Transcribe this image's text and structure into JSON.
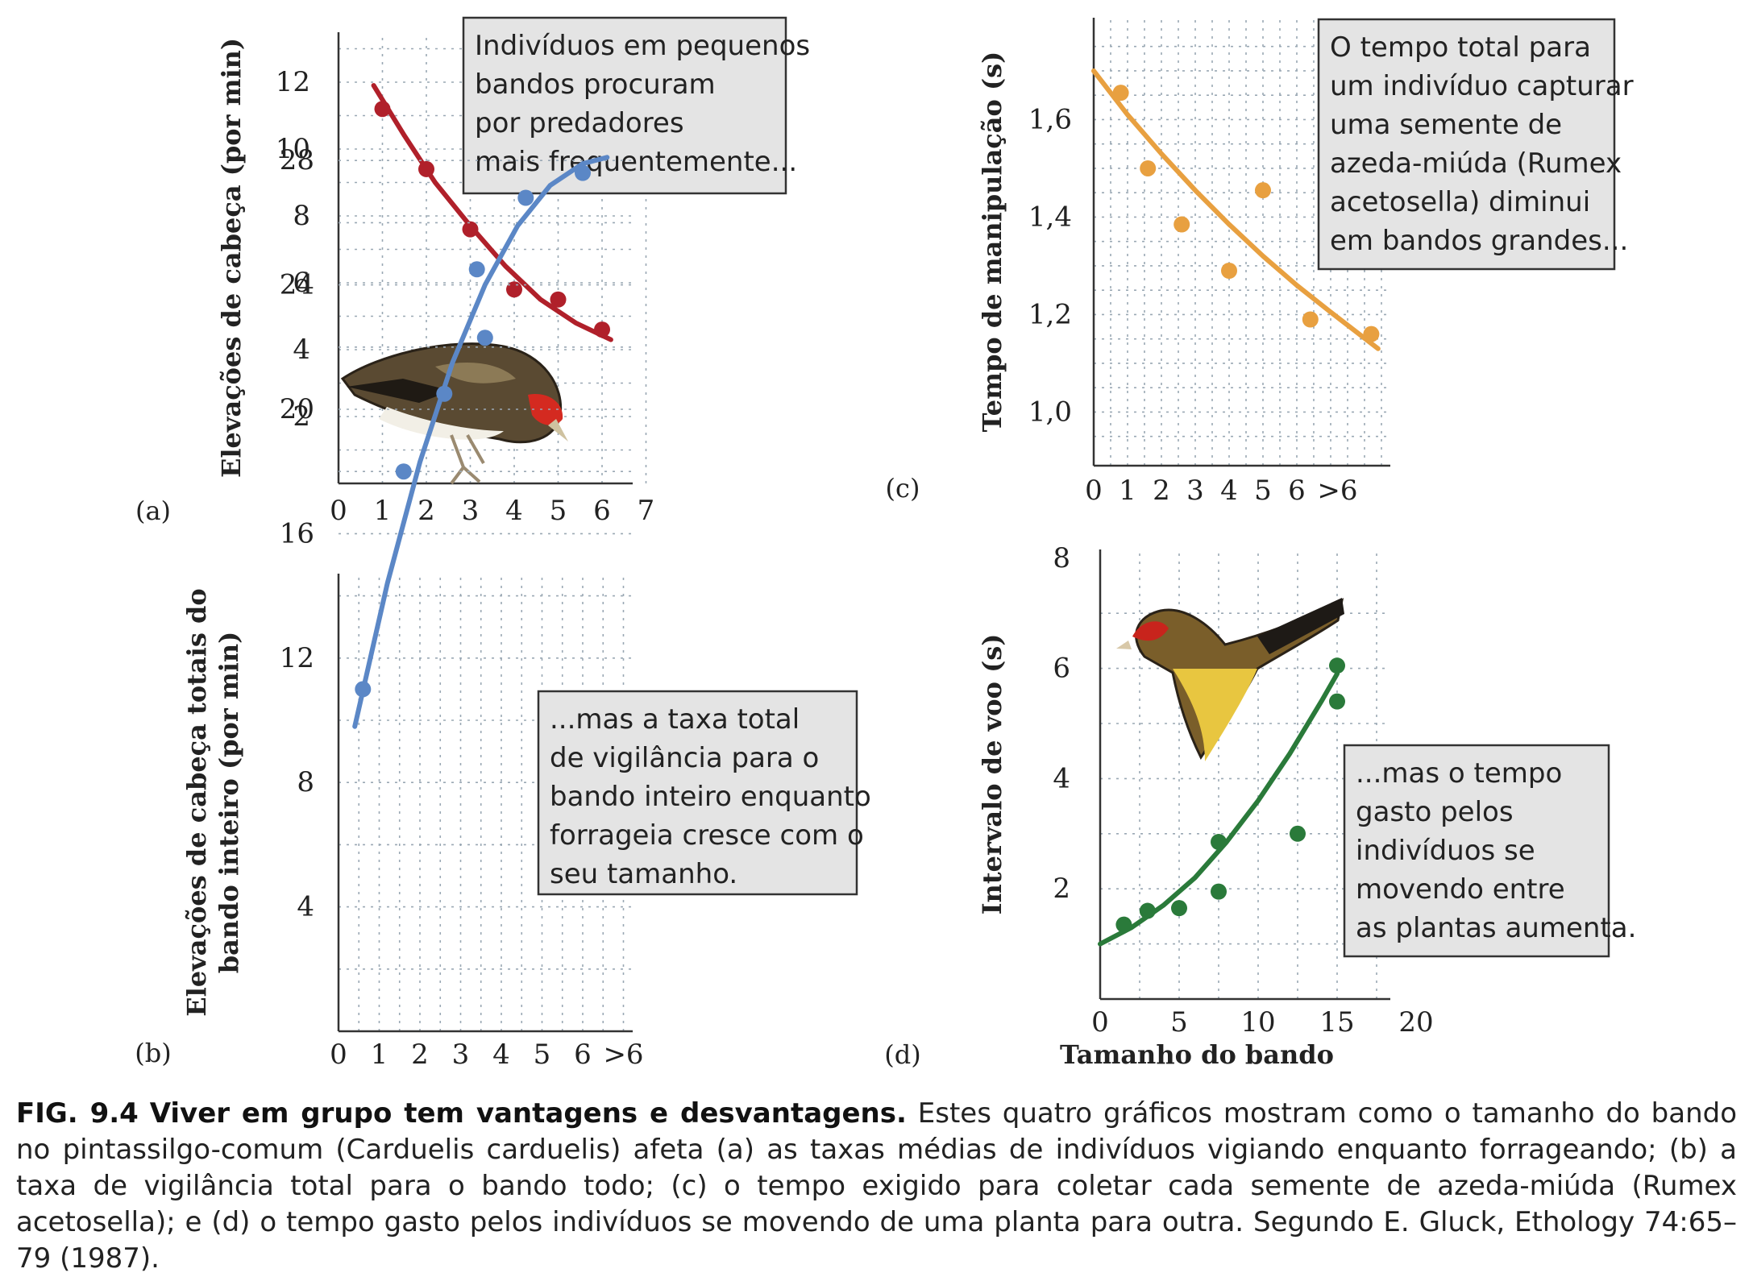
{
  "chart_data": [
    {
      "id": "a",
      "panel_label": "(a)",
      "type": "scatter",
      "ylabel": "Elevações de cabeça (por min)",
      "xlabel": "",
      "x_ticks": [
        "0",
        "1",
        "2",
        "3",
        "4",
        "5",
        "6",
        "7"
      ],
      "y_ticks": [
        "2",
        "4",
        "6",
        "8",
        "10",
        "12"
      ],
      "xlim": [
        0,
        7
      ],
      "ylim": [
        0,
        13.5
      ],
      "grid": true,
      "color": "#b0202a",
      "points": {
        "x": [
          1,
          2,
          3,
          4,
          5,
          6
        ],
        "y": [
          11.2,
          9.4,
          7.6,
          5.8,
          5.5,
          4.6
        ]
      },
      "fit": {
        "x": [
          0.8,
          1.5,
          2.2,
          3.0,
          3.8,
          4.6,
          5.4,
          6.2
        ],
        "y": [
          11.9,
          10.4,
          9.0,
          7.7,
          6.5,
          5.5,
          4.8,
          4.3
        ]
      },
      "annotation": [
        "Indivíduos em pequenos",
        "bandos procuram",
        "por predadores",
        "mais frequentemente..."
      ]
    },
    {
      "id": "b",
      "panel_label": "(b)",
      "type": "scatter",
      "ylabel": "Elevações de cabeça totais do bando inteiro (por min)",
      "ylabel_lines": [
        "Elevações de cabeça totais do",
        "bando inteiro (por min)"
      ],
      "xlabel": "",
      "x_ticks": [
        "0",
        "1",
        "2",
        "3",
        "4",
        "5",
        "6",
        ">6"
      ],
      "y_ticks": [
        "4",
        "8",
        "12",
        "16",
        "20",
        "24",
        "28"
      ],
      "xlim": [
        0,
        7.5
      ],
      "ylim": [
        0,
        29.5
      ],
      "grid": true,
      "color": "#5b87c6",
      "points": {
        "x": [
          0.6,
          1.6,
          2.6,
          3.4,
          3.6,
          4.6,
          6.0
        ],
        "y": [
          11.0,
          18.0,
          20.5,
          24.5,
          22.3,
          26.8,
          27.6
        ]
      },
      "fit": {
        "x": [
          0.4,
          1.2,
          2.0,
          2.8,
          3.6,
          4.4,
          5.2,
          6.0,
          6.6
        ],
        "y": [
          9.8,
          14.4,
          18.3,
          21.5,
          24.0,
          25.9,
          27.2,
          27.9,
          28.1
        ]
      },
      "annotation": [
        "...mas a taxa total",
        "de vigilância para o",
        "bando inteiro enquanto",
        "forrageia cresce com o",
        "seu tamanho."
      ]
    },
    {
      "id": "c",
      "panel_label": "(c)",
      "type": "scatter",
      "ylabel": "Tempo de manipulação (s)",
      "xlabel": "",
      "x_ticks": [
        "0",
        "1",
        "2",
        "3",
        "4",
        "5",
        "6",
        ">6"
      ],
      "y_ticks": [
        "1,0",
        "1,2",
        "1,4",
        "1,6"
      ],
      "xlim": [
        0,
        8.6
      ],
      "ylim": [
        0.89,
        1.78
      ],
      "grid": true,
      "color": "#e8a040",
      "points": {
        "x": [
          0.8,
          1.6,
          2.6,
          4.0,
          5.0,
          6.4,
          8.2
        ],
        "y": [
          1.655,
          1.5,
          1.385,
          1.29,
          1.455,
          1.19,
          1.16
        ]
      },
      "fit": {
        "x": [
          0.0,
          1.0,
          2.0,
          3.0,
          4.0,
          5.0,
          6.0,
          7.0,
          8.4
        ],
        "y": [
          1.7,
          1.61,
          1.53,
          1.455,
          1.385,
          1.32,
          1.26,
          1.205,
          1.13
        ]
      },
      "annotation": [
        "O tempo total para",
        "um indivíduo capturar",
        "uma semente de",
        "azeda-miúda (Rumex",
        "acetosella) diminui",
        "em bandos grandes..."
      ]
    },
    {
      "id": "d",
      "panel_label": "(d)",
      "type": "scatter",
      "ylabel": "Intervalo de voo (s)",
      "xlabel": "Tamanho do bando",
      "x_ticks": [
        "0",
        "5",
        "10",
        "15",
        "20"
      ],
      "y_ticks": [
        "2",
        "4",
        "6",
        "8"
      ],
      "xlim": [
        0,
        20
      ],
      "ylim": [
        0,
        8
      ],
      "grid": true,
      "color": "#2a7a3a",
      "points": {
        "x": [
          1.5,
          3.0,
          5.0,
          7.5,
          7.5,
          12.5,
          15.0,
          15.0
        ],
        "y": [
          1.35,
          1.6,
          1.65,
          2.85,
          1.95,
          3.0,
          6.05,
          5.4
        ]
      },
      "fit": {
        "x": [
          0.0,
          2.0,
          4.0,
          6.0,
          8.0,
          10.0,
          12.0,
          14.0,
          15.0
        ],
        "y": [
          1.0,
          1.3,
          1.7,
          2.2,
          2.85,
          3.6,
          4.45,
          5.4,
          5.9
        ]
      },
      "annotation": [
        "...mas o tempo",
        "gasto pelos",
        "indivíduos se",
        "movendo entre",
        "as plantas aumenta."
      ]
    }
  ],
  "caption": {
    "fig_number": "FIG. 9.4",
    "title": "Viver em grupo tem vantagens e desvantagens.",
    "text": "Estes quatro gráficos mostram como o tamanho do bando no pintassilgo-comum (Carduelis carduelis) afeta (a) as taxas médias de indivíduos vigiando enquanto forrageando; (b) a taxa de vigilância total para o bando todo; (c) o tempo exigido para coletar cada semente de azeda-miúda (Rumex acetosella); e (d) o tempo gasto pelos indivíduos se movendo de uma planta para outra. Segundo E. Gluck, Ethology 74:65–79 (1987)."
  }
}
